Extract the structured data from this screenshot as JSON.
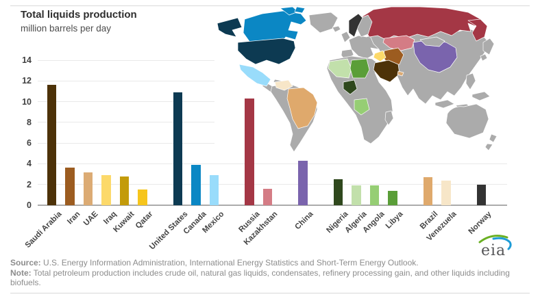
{
  "chart_data": {
    "type": "bar",
    "title": "Total liquids production",
    "subtitle": "million barrels per day",
    "categories": [
      "Saudi Arabia",
      "Iran",
      "UAE",
      "Iraq",
      "Kuwait",
      "Qatar",
      "United States",
      "Canada",
      "Mexico",
      "Russia",
      "Kazakhstan",
      "China",
      "Nigeria",
      "Algeria",
      "Angola",
      "Libya",
      "Brazil",
      "Venezuela",
      "Norway"
    ],
    "values": [
      11.6,
      3.6,
      3.2,
      2.9,
      2.8,
      1.5,
      10.9,
      3.9,
      2.9,
      10.3,
      1.6,
      4.3,
      2.5,
      1.9,
      1.9,
      1.4,
      2.7,
      2.4,
      2.0
    ],
    "colors": [
      "#4d3208",
      "#9c5c20",
      "#dcab74",
      "#fcd96a",
      "#c39b0a",
      "#f6c51c",
      "#0d3a52",
      "#0b87c4",
      "#99dcfb",
      "#a43745",
      "#d47c85",
      "#7a64ad",
      "#2f481d",
      "#c2e0ab",
      "#96ce74",
      "#5a9e38",
      "#dfa96c",
      "#f7e6c8",
      "#333333"
    ],
    "group_breaks": [
      6,
      9,
      11,
      12,
      16,
      18
    ],
    "ylim": [
      0,
      14
    ],
    "ytick_step": 2,
    "yticks": [
      "0",
      "2",
      "4",
      "6",
      "8",
      "10",
      "12",
      "14"
    ],
    "grid": true,
    "legend": "none",
    "inset": "world map with producing countries shaded in matching bar colors"
  },
  "map": {
    "land_color": "#ababab",
    "ocean_color": "#ffffff",
    "border_color": "#ffffff"
  },
  "footer": {
    "source_label": "Source:",
    "source_text": " U.S. Energy Information Administration, International Energy Statistics and Short-Term Energy Outlook.",
    "note_label": "Note:",
    "note_text": " Total petroleum production includes crude oil, natural gas liquids, condensates, refinery processing gain, and other liquids including biofuels.",
    "logo_text": "eia"
  }
}
